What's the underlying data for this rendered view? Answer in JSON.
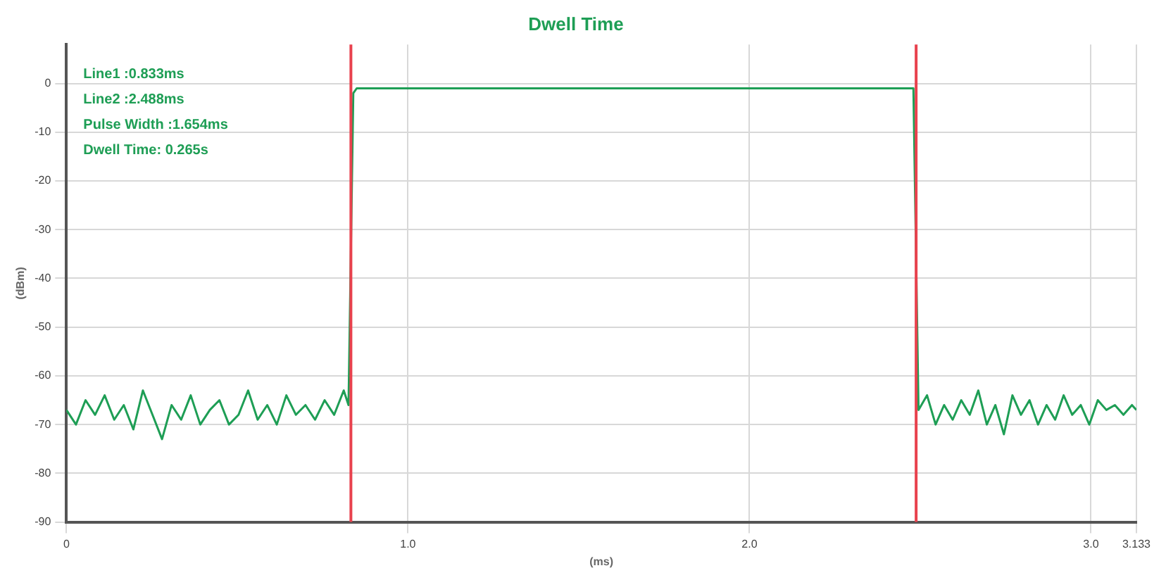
{
  "chart_data": {
    "type": "line",
    "title": "Dwell Time",
    "xlabel": "(ms)",
    "ylabel": "(dBm)",
    "annotations": [
      "Line1 :0.833ms",
      "Line2 :2.488ms",
      "Pulse Width :1.654ms",
      "Dwell Time: 0.265s"
    ],
    "xlim": [
      0,
      3.133
    ],
    "xticks": [
      0,
      {
        "value": 1,
        "label": "1.0"
      },
      {
        "value": 2,
        "label": "2.0"
      },
      {
        "value": 3,
        "label": "3.0"
      },
      3.133
    ],
    "ylim": [
      -90,
      8
    ],
    "yticks": [
      0,
      -10,
      -20,
      -30,
      -40,
      -50,
      -60,
      -70,
      -80,
      -90
    ],
    "grid": true,
    "legend": false,
    "marker": "none",
    "line_style": "solid",
    "ref_lines": [
      {
        "axis": "x",
        "value": 0.833,
        "color": "#e8424e"
      },
      {
        "axis": "x",
        "value": 2.488,
        "color": "#e8424e"
      }
    ],
    "series": [
      {
        "color": "#1e9e55",
        "x": [
          0,
          0.028,
          0.056,
          0.084,
          0.112,
          0.14,
          0.168,
          0.196,
          0.224,
          0.252,
          0.28,
          0.308,
          0.336,
          0.364,
          0.392,
          0.42,
          0.448,
          0.476,
          0.504,
          0.532,
          0.56,
          0.588,
          0.616,
          0.644,
          0.672,
          0.7,
          0.728,
          0.756,
          0.784,
          0.812,
          0.826,
          0.84,
          0.85,
          0.87,
          0.95,
          1.2,
          1.6,
          2.0,
          2.4,
          2.48,
          2.495,
          2.52,
          2.545,
          2.57,
          2.595,
          2.62,
          2.645,
          2.67,
          2.695,
          2.72,
          2.745,
          2.77,
          2.795,
          2.82,
          2.845,
          2.87,
          2.895,
          2.92,
          2.945,
          2.97,
          2.995,
          3.02,
          3.045,
          3.07,
          3.095,
          3.12,
          3.133
        ],
        "values": [
          -67,
          -70,
          -65,
          -68,
          -64,
          -69,
          -66,
          -71,
          -63,
          -68,
          -73,
          -66,
          -69,
          -64,
          -70,
          -67,
          -65,
          -70,
          -68,
          -63,
          -69,
          -66,
          -70,
          -64,
          -68,
          -66,
          -69,
          -65,
          -68,
          -63,
          -66,
          -2,
          -1,
          -1,
          -1,
          -1,
          -1,
          -1,
          -1,
          -1,
          -67,
          -64,
          -70,
          -66,
          -69,
          -65,
          -68,
          -63,
          -70,
          -66,
          -72,
          -64,
          -68,
          -65,
          -70,
          -66,
          -69,
          -64,
          -68,
          -66,
          -70,
          -65,
          -67,
          -66,
          -68,
          -66,
          -67
        ]
      }
    ]
  }
}
